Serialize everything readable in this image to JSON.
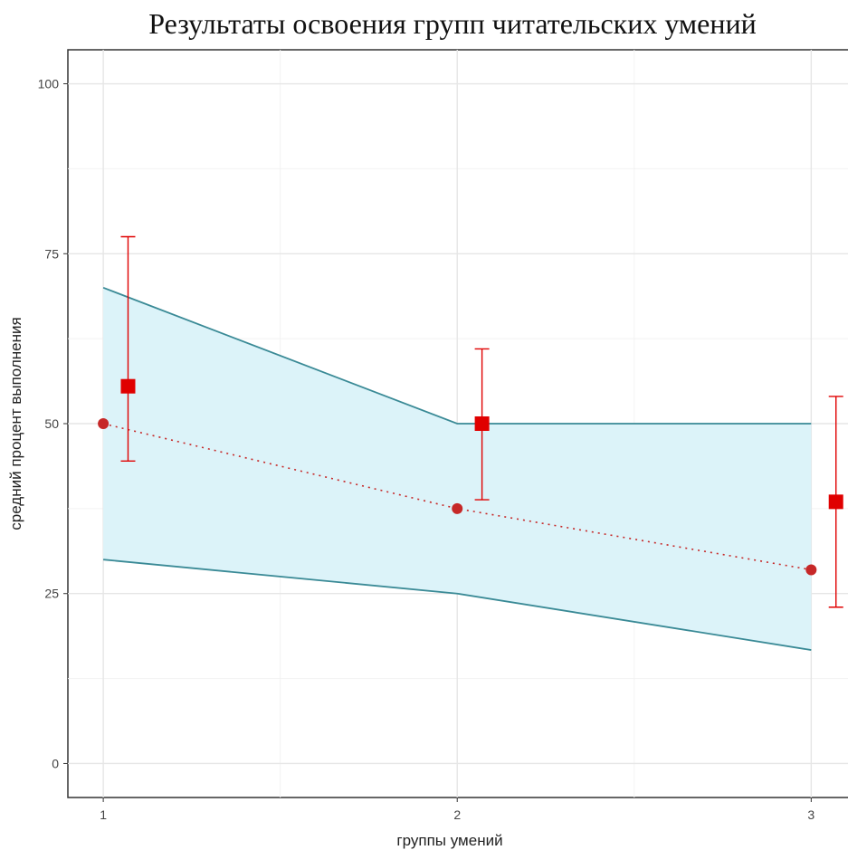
{
  "chart_data": {
    "type": "line",
    "title": "Результаты освоения групп читательских умений",
    "xlabel": "группы умений",
    "ylabel": "средний процент выполнения",
    "x": [
      1,
      2,
      3
    ],
    "xlim": [
      0.9,
      3.15
    ],
    "ylim": [
      -5,
      105
    ],
    "yticks": [
      0,
      25,
      50,
      75,
      100
    ],
    "grid": true,
    "band": {
      "upper": [
        70,
        50,
        50
      ],
      "lower": [
        30,
        25,
        16.7
      ],
      "fill": "#dcf3f9",
      "stroke": "#3a8a96"
    },
    "series": [
      {
        "kind": "dotted-line-points",
        "y": [
          50,
          37.5,
          28.5
        ],
        "color": "#c62828"
      },
      {
        "kind": "square-errorbar",
        "x": [
          1.07,
          2.07,
          3.07
        ],
        "y": [
          55.5,
          50,
          38.5
        ],
        "ymin": [
          44.5,
          38.8,
          23
        ],
        "ymax": [
          77.5,
          61,
          54
        ],
        "color": "#e00000"
      }
    ]
  }
}
